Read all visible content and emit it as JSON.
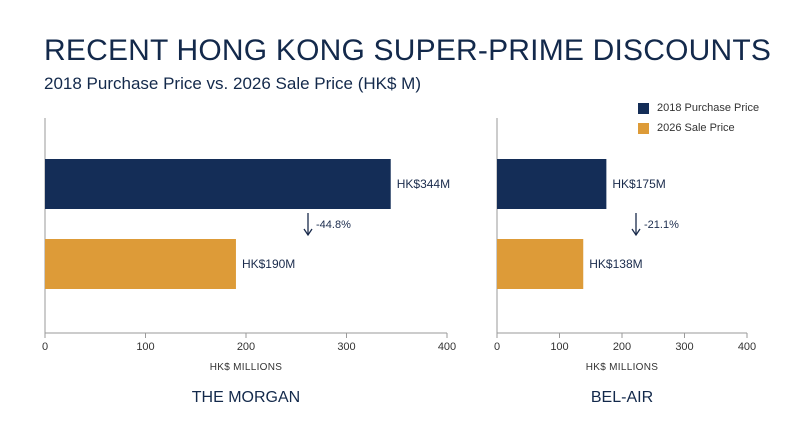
{
  "title": "RECENT HONG KONG SUPER-PRIME DISCOUNTS",
  "subtitle": "2018 Purchase Price vs. 2026 Sale Price (HK$ M)",
  "colors": {
    "purchase": "#142d57",
    "sale": "#dd9b38",
    "text": "#13294b"
  },
  "legend": [
    {
      "label": "2018 Purchase Price",
      "color": "#142d57"
    },
    {
      "label": "2026 Sale Price",
      "color": "#dd9b38"
    }
  ],
  "chart_data": [
    {
      "type": "bar",
      "orientation": "horizontal",
      "title": "THE MORGAN",
      "xlabel": "HK$ MILLIONS",
      "xlim": [
        0,
        400
      ],
      "xticks": [
        "0",
        "100",
        "200",
        "300",
        "400"
      ],
      "series": [
        {
          "name": "2018 Purchase Price",
          "value": 344,
          "label": "HK$344M"
        },
        {
          "name": "2026 Sale Price",
          "value": 190,
          "label": "HK$190M"
        }
      ],
      "change_label": "-44.8%"
    },
    {
      "type": "bar",
      "orientation": "horizontal",
      "title": "BEL-AIR",
      "xlabel": "HK$ MILLIONS",
      "xlim": [
        0,
        400
      ],
      "xticks": [
        "0",
        "100",
        "200",
        "300",
        "400"
      ],
      "series": [
        {
          "name": "2018 Purchase Price",
          "value": 175,
          "label": "HK$175M"
        },
        {
          "name": "2026 Sale Price",
          "value": 138,
          "label": "HK$138M"
        }
      ],
      "change_label": "-21.1%"
    }
  ]
}
